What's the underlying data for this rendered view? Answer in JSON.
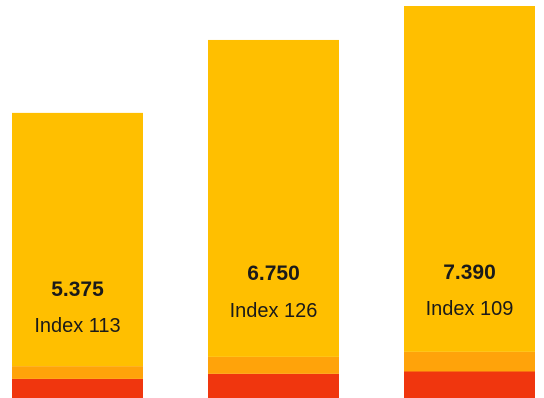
{
  "chart_data": {
    "type": "bar",
    "stacked": true,
    "grid": false,
    "legend": "none",
    "title": "",
    "xlabel": "",
    "ylabel": "",
    "ylim": [
      0,
      7.39
    ],
    "bars": [
      {
        "total": 5.375,
        "total_label": "5.375",
        "index_label": "Index 113",
        "segments": [
          0.36,
          0.24,
          4.775
        ]
      },
      {
        "total": 6.75,
        "total_label": "6.750",
        "index_label": "Index 126",
        "segments": [
          0.455,
          0.32,
          5.975
        ]
      },
      {
        "total": 7.39,
        "total_label": "7.390",
        "index_label": "Index 109",
        "segments": [
          0.5,
          0.37,
          6.52
        ]
      }
    ],
    "colors": {
      "segment_bottom": "#F0360E",
      "segment_middle": "#FFA30A",
      "segment_top": "#FFBF00"
    }
  }
}
